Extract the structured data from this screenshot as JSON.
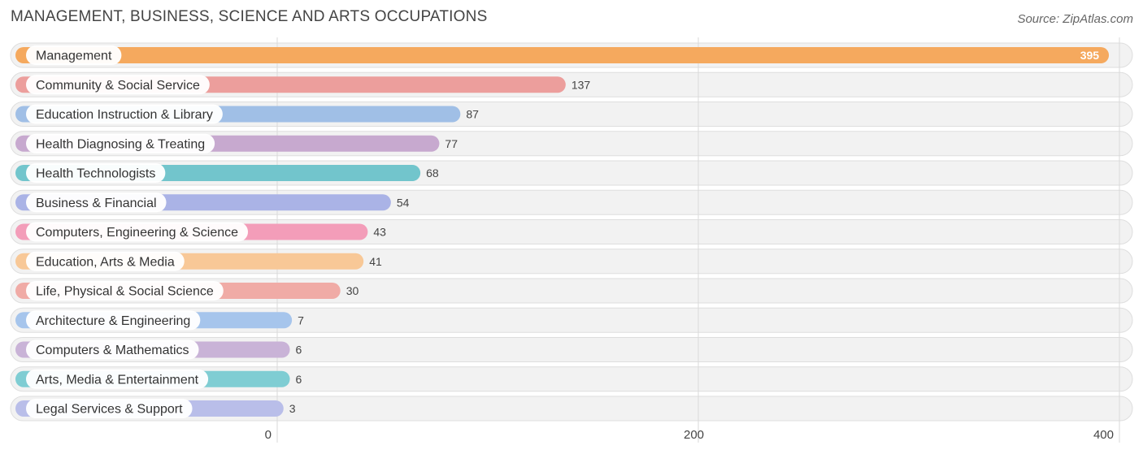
{
  "title": "MANAGEMENT, BUSINESS, SCIENCE AND ARTS OCCUPATIONS",
  "source": "Source: ZipAtlas.com",
  "chart_data": {
    "type": "bar",
    "orientation": "horizontal",
    "categories": [
      "Management",
      "Community & Social Service",
      "Education Instruction & Library",
      "Health Diagnosing & Treating",
      "Health Technologists",
      "Business & Financial",
      "Computers, Engineering & Science",
      "Education, Arts & Media",
      "Life, Physical & Social Science",
      "Architecture & Engineering",
      "Computers & Mathematics",
      "Arts, Media & Entertainment",
      "Legal Services & Support"
    ],
    "values": [
      395,
      137,
      87,
      77,
      68,
      54,
      43,
      41,
      30,
      7,
      6,
      6,
      3
    ],
    "colors": [
      "#f5a95e",
      "#ec9e9c",
      "#a0bfe6",
      "#c7a9cf",
      "#72c5cc",
      "#aab3e6",
      "#f39db9",
      "#f8c897",
      "#f0aba6",
      "#a6c5ec",
      "#c9b3d7",
      "#7fcdd3",
      "#b9bee9"
    ],
    "xlim": [
      0,
      400
    ],
    "xticks": [
      "0",
      "200",
      "400"
    ],
    "grid": true
  }
}
